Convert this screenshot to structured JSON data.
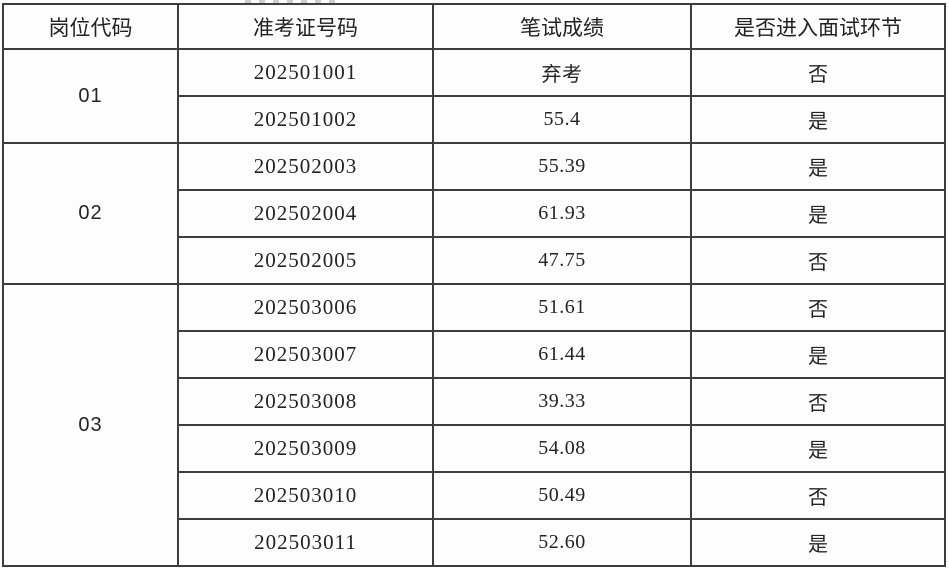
{
  "table": {
    "headers": [
      "岗位代码",
      "准考证号码",
      "笔试成绩",
      "是否进入面试环节"
    ],
    "groups": [
      {
        "code": "01",
        "rows": [
          {
            "ticket": "202501001",
            "score": "弃考",
            "interview": "否"
          },
          {
            "ticket": "202501002",
            "score": "55.4",
            "interview": "是"
          }
        ]
      },
      {
        "code": "02",
        "rows": [
          {
            "ticket": "202502003",
            "score": "55.39",
            "interview": "是"
          },
          {
            "ticket": "202502004",
            "score": "61.93",
            "interview": "是"
          },
          {
            "ticket": "202502005",
            "score": "47.75",
            "interview": "否"
          }
        ]
      },
      {
        "code": "03",
        "rows": [
          {
            "ticket": "202503006",
            "score": "51.61",
            "interview": "否"
          },
          {
            "ticket": "202503007",
            "score": "61.44",
            "interview": "是"
          },
          {
            "ticket": "202503008",
            "score": "39.33",
            "interview": "否"
          },
          {
            "ticket": "202503009",
            "score": "54.08",
            "interview": "是"
          },
          {
            "ticket": "202503010",
            "score": "50.49",
            "interview": "否"
          },
          {
            "ticket": "202503011",
            "score": "52.60",
            "interview": "是"
          }
        ]
      }
    ],
    "colors": {
      "border": "#3d3d3d",
      "text": "#242424",
      "background": "#fdfdfd"
    }
  }
}
